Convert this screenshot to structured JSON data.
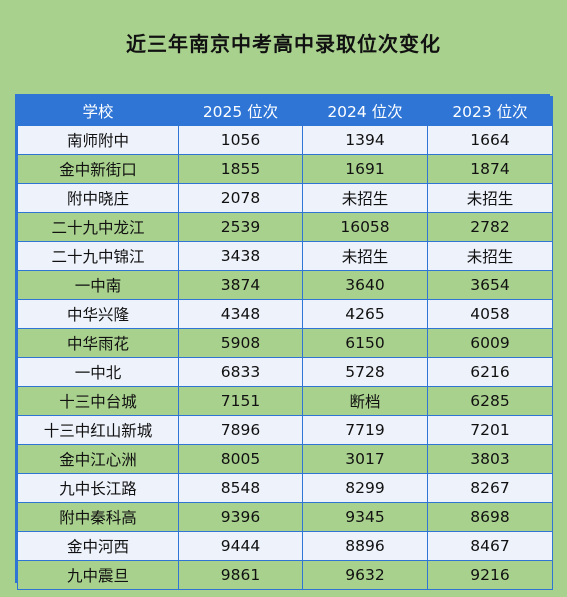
{
  "title": "近三年南京中考高中录取位次变化",
  "table": {
    "headers": [
      "学校",
      "2025 位次",
      "2024 位次",
      "2023 位次"
    ],
    "rows": [
      [
        "南师附中",
        "1056",
        "1394",
        "1664"
      ],
      [
        "金中新街口",
        "1855",
        "1691",
        "1874"
      ],
      [
        "附中晓庄",
        "2078",
        "未招生",
        "未招生"
      ],
      [
        "二十九中龙江",
        "2539",
        "16058",
        "2782"
      ],
      [
        "二十九中锦江",
        "3438",
        "未招生",
        "未招生"
      ],
      [
        "一中南",
        "3874",
        "3640",
        "3654"
      ],
      [
        "中华兴隆",
        "4348",
        "4265",
        "4058"
      ],
      [
        "中华雨花",
        "5908",
        "6150",
        "6009"
      ],
      [
        "一中北",
        "6833",
        "5728",
        "6216"
      ],
      [
        "十三中台城",
        "7151",
        "断档",
        "6285"
      ],
      [
        "十三中红山新城",
        "7896",
        "7719",
        "7201"
      ],
      [
        "金中江心洲",
        "8005",
        "3017",
        "3803"
      ],
      [
        "九中长江路",
        "8548",
        "8299",
        "8267"
      ],
      [
        "附中秦科高",
        "9396",
        "9345",
        "8698"
      ],
      [
        "金中河西",
        "9444",
        "8896",
        "8467"
      ],
      [
        "九中震旦",
        "9861",
        "9632",
        "9216"
      ]
    ]
  },
  "colors": {
    "background": "#a9d18e",
    "header": "#2e75d6",
    "row_light": "#eef2fb",
    "row_green": "#a9d18e"
  }
}
